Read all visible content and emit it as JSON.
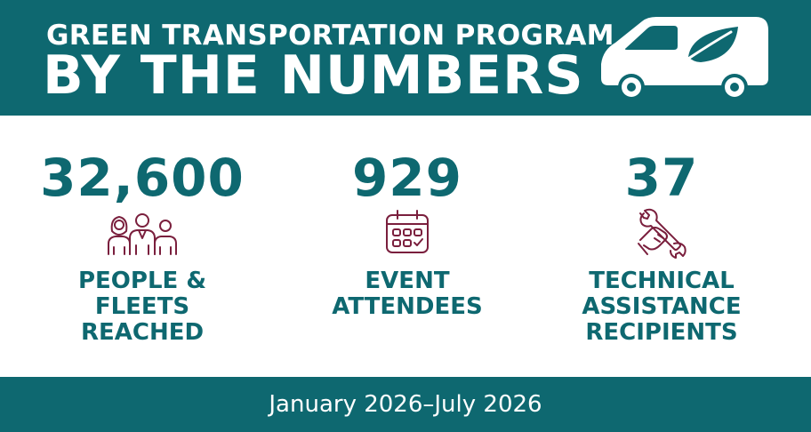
{
  "header": {
    "subtitle": "GREEN TRANSPORTATION PROGRAM",
    "title": "BY THE NUMBERS",
    "icon": "van-with-leaf-icon"
  },
  "stats": [
    {
      "value": "32,600",
      "label": "PEOPLE &\nFLEETS\nREACHED",
      "icon": "people-group-icon"
    },
    {
      "value": "929",
      "label": "EVENT\nATTENDEES",
      "icon": "calendar-icon"
    },
    {
      "value": "37",
      "label": "TECHNICAL\nASSISTANCE\nRECIPIENTS",
      "icon": "wrench-hand-icon"
    }
  ],
  "footer": {
    "date_range": "January 2026–July 2026"
  },
  "colors": {
    "brand_teal": "#0e6870",
    "icon_maroon": "#7a1f3d",
    "background": "#ffffff"
  }
}
